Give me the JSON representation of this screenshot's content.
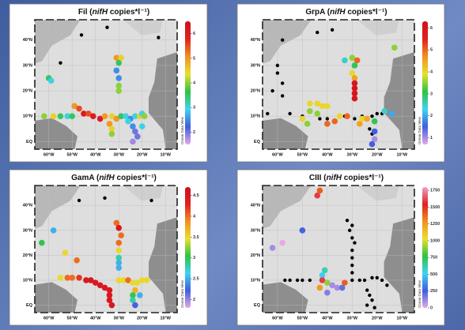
{
  "chart_data": [
    {
      "type": "scatter",
      "title": [
        "Fil (",
        "nifH",
        " copies*l⁻¹)"
      ],
      "xlim": [
        -66,
        -5
      ],
      "ylim": [
        -3,
        48
      ],
      "xticks": [
        {
          "value": -60,
          "label": "60°W"
        },
        {
          "value": -50,
          "label": "50°W"
        },
        {
          "value": -40,
          "label": "40°W"
        },
        {
          "value": -30,
          "label": "30°W"
        },
        {
          "value": -20,
          "label": "20°W"
        },
        {
          "value": -10,
          "label": "10°W"
        }
      ],
      "yticks": [
        {
          "value": 0,
          "label": "EQ"
        },
        {
          "value": 10,
          "label": "10°N"
        },
        {
          "value": 20,
          "label": "20°N"
        },
        {
          "value": 30,
          "label": "30°N"
        },
        {
          "value": 40,
          "label": "40°N"
        }
      ],
      "clim": [
        1.5,
        6.5
      ],
      "cticks": [
        2,
        3,
        4,
        5,
        6
      ],
      "colorbar_label": "Ocean Data View",
      "colormap": [
        "#e8a8e8",
        "#3e5fe0",
        "#3fd4f2",
        "#2fc23f",
        "#e8e030",
        "#f29020",
        "#e02020",
        "#d0101c"
      ],
      "x": [
        -46,
        -35,
        -13,
        -55,
        -60,
        -59,
        -31,
        -29,
        -30,
        -31,
        -30,
        -30,
        -30,
        -49,
        -47,
        -45,
        -43,
        -41,
        -38,
        -36,
        -33,
        -31,
        -62,
        -58,
        -55,
        -52,
        -50,
        -34,
        -33,
        -33,
        -29,
        -27,
        -25,
        -23,
        -21,
        -20,
        -19,
        -24,
        -23,
        -22,
        -24,
        -26,
        -20
      ],
      "y": [
        42,
        45,
        41,
        31,
        25,
        24,
        33,
        33,
        31,
        28,
        25,
        22,
        20,
        14,
        13,
        11,
        11,
        10,
        9,
        10,
        10,
        9,
        10,
        10,
        10,
        10,
        10,
        7,
        5,
        3,
        10,
        10,
        9,
        10,
        10,
        11,
        10,
        6,
        4,
        2,
        0,
        8,
        6
      ],
      "values": [
        null,
        null,
        null,
        null,
        3.5,
        3,
        5,
        4.5,
        3.5,
        2.5,
        2.5,
        4,
        4,
        5,
        5.5,
        6,
        5.5,
        6,
        6,
        5,
        4.5,
        5,
        4,
        4.5,
        3.5,
        3,
        3.5,
        5,
        4.5,
        4,
        3.5,
        3,
        2.5,
        3,
        4.5,
        3,
        4,
        2.5,
        2,
        2,
        1.8,
        3,
        3
      ]
    },
    {
      "type": "scatter",
      "title": [
        "GrpA (",
        "nifH",
        " copies*l⁻¹)"
      ],
      "xlim": [
        -66,
        -5
      ],
      "ylim": [
        -3,
        48
      ],
      "xticks": [
        {
          "value": -60,
          "label": "60°W"
        },
        {
          "value": -50,
          "label": "50°W"
        },
        {
          "value": -40,
          "label": "40°W"
        },
        {
          "value": -30,
          "label": "30°W"
        },
        {
          "value": -20,
          "label": "20°W"
        },
        {
          "value": -10,
          "label": "10°W"
        }
      ],
      "yticks": [
        {
          "value": 0,
          "label": "EQ"
        },
        {
          "value": 10,
          "label": "10°N"
        },
        {
          "value": 20,
          "label": "20°N"
        },
        {
          "value": 30,
          "label": "30°N"
        },
        {
          "value": 40,
          "label": "40°N"
        }
      ],
      "clim": [
        0.7,
        6.3
      ],
      "cticks": [
        1,
        2,
        3,
        4,
        5,
        6
      ],
      "colorbar_label": "Ocean Data View",
      "colormap": [
        "#e8a8e8",
        "#3e5fe0",
        "#3fd4f2",
        "#2fc23f",
        "#e8e030",
        "#f29020",
        "#e02020",
        "#d0101c"
      ],
      "x": [
        -58,
        -44,
        -38,
        -60,
        -60,
        -58,
        -62,
        -58,
        -64,
        -55,
        -50,
        -43,
        -40,
        -33,
        -29,
        -26,
        -22,
        -20,
        -18,
        -23,
        -22,
        -13,
        -33,
        -30,
        -28,
        -29,
        -30,
        -29,
        -29,
        -29,
        -29,
        -29,
        -47,
        -44,
        -42,
        -40,
        -47,
        -44,
        -50,
        -48,
        -40,
        -37,
        -35,
        -32,
        -27,
        -26,
        -24,
        -17,
        -14,
        -21,
        -21,
        -21,
        -22
      ],
      "y": [
        40,
        43,
        44,
        30,
        27,
        23,
        20,
        18,
        11,
        11,
        10,
        9,
        9,
        10,
        9,
        10,
        10,
        11,
        11,
        5,
        3,
        37,
        32,
        33,
        32,
        30,
        27,
        25,
        23,
        21,
        19,
        17,
        15,
        15,
        14,
        14,
        12,
        11,
        9,
        7,
        7,
        8,
        10,
        10,
        7,
        9,
        9,
        12,
        11,
        8,
        4,
        1,
        -1
      ],
      "values": [
        null,
        null,
        null,
        null,
        null,
        null,
        null,
        null,
        null,
        null,
        null,
        null,
        null,
        null,
        null,
        null,
        null,
        null,
        null,
        null,
        null,
        3.5,
        2.5,
        3.5,
        5,
        3,
        4,
        4.5,
        6,
        6,
        6,
        6,
        4,
        4,
        4,
        4,
        3.5,
        3.5,
        4,
        3.5,
        5,
        5,
        4,
        5,
        4.5,
        4,
        4.5,
        2.5,
        2,
        3,
        1.5,
        1,
        1.5
      ]
    },
    {
      "type": "scatter",
      "title": [
        "GamA (",
        "nifH",
        " copies*l⁻¹)"
      ],
      "xlim": [
        -66,
        -5
      ],
      "ylim": [
        -3,
        48
      ],
      "xticks": [
        {
          "value": -60,
          "label": "60°W"
        },
        {
          "value": -50,
          "label": "50°W"
        },
        {
          "value": -40,
          "label": "40°W"
        },
        {
          "value": -30,
          "label": "30°W"
        },
        {
          "value": -20,
          "label": "20°W"
        },
        {
          "value": -10,
          "label": "10°W"
        }
      ],
      "yticks": [
        {
          "value": 0,
          "label": "EQ"
        },
        {
          "value": 10,
          "label": "10°N"
        },
        {
          "value": 20,
          "label": "20°N"
        },
        {
          "value": 30,
          "label": "30°N"
        },
        {
          "value": 40,
          "label": "40°N"
        }
      ],
      "clim": [
        1.8,
        4.7
      ],
      "cticks": [
        2,
        2.5,
        3,
        3.5,
        4,
        4.5
      ],
      "colorbar_label": "Ocean Data View",
      "colormap": [
        "#e8a8e8",
        "#3e5fe0",
        "#3fd4f2",
        "#2fc23f",
        "#e8e030",
        "#f29020",
        "#e02020",
        "#d0101c"
      ],
      "x": [
        -47,
        -36,
        -16,
        -58,
        -63,
        -53,
        -48,
        -31,
        -30,
        -29,
        -30,
        -30,
        -30,
        -30,
        -30,
        -55,
        -52,
        -50,
        -47,
        -44,
        -42,
        -40,
        -38,
        -36,
        -34,
        -34,
        -34,
        -33,
        -30,
        -28,
        -26,
        -24,
        -22,
        -20,
        -18,
        -23,
        -24,
        -24,
        -23,
        -21
      ],
      "y": [
        42,
        43,
        42,
        30,
        25,
        21,
        18,
        33,
        31,
        28,
        25,
        22,
        19,
        17,
        15,
        11,
        11,
        11,
        11,
        10,
        10,
        9,
        8,
        7,
        6,
        4,
        2,
        0,
        10,
        10,
        10,
        9,
        9,
        10,
        10,
        6,
        4,
        2,
        0,
        4
      ],
      "values": [
        null,
        null,
        null,
        2.5,
        3,
        3.5,
        4,
        4,
        4.5,
        4,
        4,
        3.5,
        2.8,
        2.5,
        2.5,
        3.5,
        4,
        4,
        4.2,
        4.5,
        4.5,
        4.5,
        4.5,
        4.5,
        4.5,
        4.5,
        4.5,
        4.5,
        3.5,
        3.5,
        4,
        3.5,
        3.5,
        3.5,
        3.5,
        3.7,
        3,
        2.8,
        2.2,
        2.5
      ]
    },
    {
      "type": "scatter",
      "title": [
        "CIII (",
        "nifH",
        " copies*l⁻¹)"
      ],
      "xlim": [
        -66,
        -5
      ],
      "ylim": [
        -3,
        48
      ],
      "xticks": [
        {
          "value": -60,
          "label": "60°W"
        },
        {
          "value": -50,
          "label": "50°W"
        },
        {
          "value": -40,
          "label": "40°W"
        },
        {
          "value": -30,
          "label": "30°W"
        },
        {
          "value": -20,
          "label": "20°W"
        },
        {
          "value": -10,
          "label": "10°W"
        }
      ],
      "yticks": [
        {
          "value": 0,
          "label": "EQ"
        },
        {
          "value": 10,
          "label": "10°N"
        },
        {
          "value": 20,
          "label": "20°N"
        },
        {
          "value": 30,
          "label": "30°N"
        },
        {
          "value": 40,
          "label": "40°N"
        }
      ],
      "clim": [
        0,
        1800
      ],
      "cticks": [
        0,
        250,
        500,
        750,
        1000,
        1250,
        1500,
        1750
      ],
      "colorbar_label": "Ocean Data View",
      "colormap": [
        "#e8a8e8",
        "#3e5fe0",
        "#3fd4f2",
        "#2fc23f",
        "#e8e030",
        "#f29020",
        "#e02020",
        "#f0a0c0"
      ],
      "x": [
        -43,
        -44,
        -50,
        -58,
        -62,
        -41,
        -42,
        -42,
        -40,
        -43,
        -38,
        -36,
        -34,
        -33,
        -40,
        -57,
        -55,
        -52,
        -50,
        -47,
        -30,
        -27,
        -25,
        -22,
        -20,
        -18,
        -16,
        -32,
        -30,
        -31,
        -30,
        -29,
        -30,
        -30,
        -30,
        -30,
        -24,
        -23,
        -22,
        -24,
        -21
      ],
      "y": [
        46,
        44,
        30,
        25,
        23,
        14,
        12,
        10,
        9,
        7,
        8,
        7,
        7,
        9,
        5,
        10,
        10,
        10,
        10,
        10,
        10,
        10,
        10,
        11,
        11,
        10,
        8,
        34,
        32,
        30,
        27,
        25,
        22,
        19,
        16,
        13,
        6,
        4,
        2,
        0,
        -1
      ],
      "values": [
        1400,
        1600,
        250,
        0,
        100,
        600,
        500,
        1600,
        900,
        1250,
        100,
        100,
        200,
        1400,
        150,
        null,
        null,
        null,
        null,
        null,
        null,
        null,
        null,
        null,
        null,
        null,
        null,
        null,
        null,
        null,
        null,
        null,
        null,
        null,
        null,
        null,
        null,
        null,
        null,
        null,
        null
      ]
    }
  ]
}
